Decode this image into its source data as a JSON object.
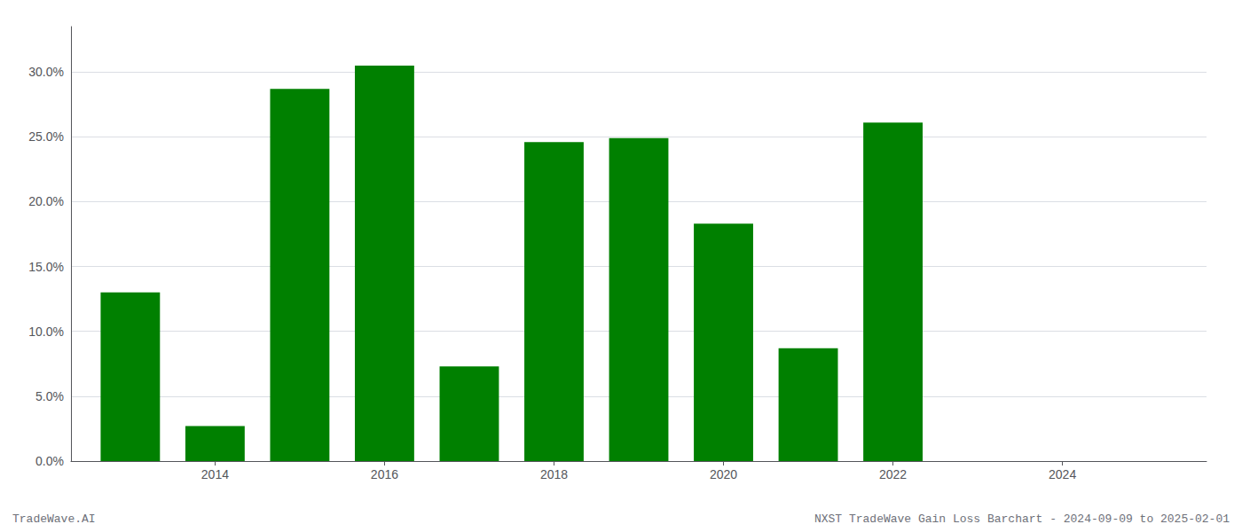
{
  "chart_data": {
    "type": "bar",
    "x": [
      2013,
      2014,
      2015,
      2016,
      2017,
      2018,
      2019,
      2020,
      2021,
      2022
    ],
    "values": [
      0.13,
      0.027,
      0.287,
      0.305,
      0.073,
      0.246,
      0.249,
      0.183,
      0.087,
      0.261
    ],
    "color": "#008000",
    "xlim": [
      2012.3,
      2025.7
    ],
    "xticks": [
      2014,
      2016,
      2018,
      2020,
      2022,
      2024
    ],
    "ylim": [
      0,
      0.335
    ],
    "yticks": [
      {
        "value": 0.0,
        "label": "0.0%"
      },
      {
        "value": 0.05,
        "label": "5.0%"
      },
      {
        "value": 0.1,
        "label": "10.0%"
      },
      {
        "value": 0.15,
        "label": "15.0%"
      },
      {
        "value": 0.2,
        "label": "20.0%"
      },
      {
        "value": 0.25,
        "label": "25.0%"
      },
      {
        "value": 0.3,
        "label": "30.0%"
      }
    ],
    "grid": true,
    "annotations": [
      "TradeWave.AI",
      "NXST TradeWave Gain Loss Barchart - 2024-09-09 to 2025-02-01"
    ]
  }
}
